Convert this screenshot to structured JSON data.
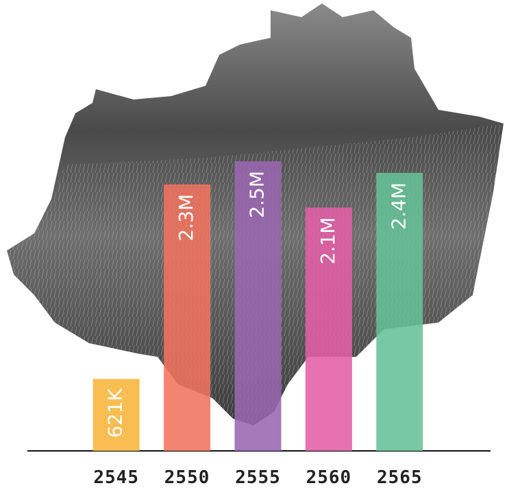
{
  "chart_data": {
    "type": "bar",
    "categories": [
      "2545",
      "2550",
      "2555",
      "2560",
      "2565"
    ],
    "values": [
      621000,
      2300000,
      2500000,
      2100000,
      2400000
    ],
    "value_labels": [
      "621K",
      "2.3M",
      "2.5M",
      "2.1M",
      "2.4M"
    ],
    "colors": [
      "#f9b43a",
      "#f3735f",
      "#9a67b2",
      "#e35ea6",
      "#65c296"
    ]
  }
}
